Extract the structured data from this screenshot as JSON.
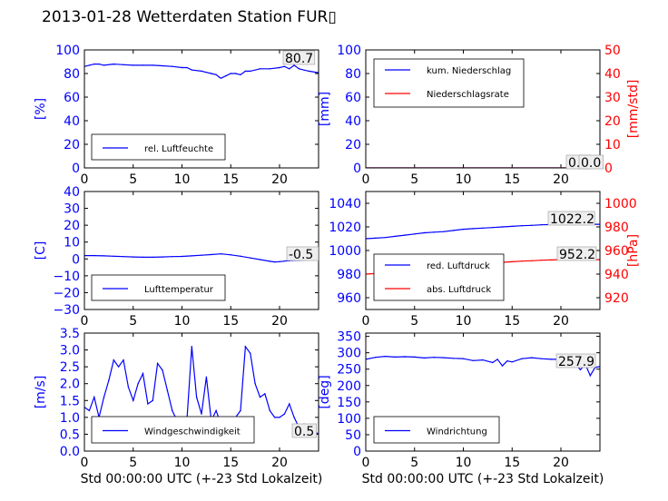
{
  "title": "2013-01-28 Wetterdaten Station FUR▯",
  "xlabel": "Std 00:00:00 UTC (+-23 Std Lokalzeit)",
  "colors": {
    "primary": "#0000ff",
    "secondary": "#ff0000",
    "blue_light": "#8888ff"
  },
  "chart_data": [
    {
      "type": "line",
      "ylabel": "[%]",
      "xlim": [
        0,
        24
      ],
      "ylim": [
        0,
        100
      ],
      "xticks": [
        "0",
        "5",
        "10",
        "15",
        "20"
      ],
      "yticks": [
        "0",
        "20",
        "40",
        "60",
        "80",
        "100"
      ],
      "legend": [
        "rel. Luftfeuchte"
      ],
      "legend_position": "lower-left",
      "annotation": "80.7",
      "series": [
        {
          "name": "rel. Luftfeuchte",
          "x": [
            0,
            0.5,
            1,
            1.5,
            2,
            3,
            4,
            5,
            6,
            7,
            8,
            9,
            10,
            10.5,
            11,
            12,
            12.5,
            13,
            13.5,
            13.8,
            14,
            14.5,
            15,
            15.5,
            16,
            16.5,
            17,
            18,
            19,
            20,
            20.5,
            21,
            21.5,
            22,
            23,
            24
          ],
          "y": [
            86,
            87,
            88,
            88,
            87,
            88,
            87.5,
            87,
            87,
            87,
            86.5,
            86,
            85,
            85,
            83,
            82,
            81,
            80,
            79,
            77,
            76,
            78,
            80,
            80,
            79,
            82,
            82,
            84,
            84,
            85,
            86,
            84,
            87,
            84,
            82,
            80.7
          ]
        }
      ]
    },
    {
      "type": "line",
      "ylabel": "[mm]",
      "ylabel_right": "[mm/std]",
      "xlim": [
        0,
        24
      ],
      "ylim": [
        0,
        100
      ],
      "ylim_right": [
        0,
        50
      ],
      "xticks": [
        "0",
        "5",
        "10",
        "15",
        "20"
      ],
      "yticks": [
        "0",
        "20",
        "40",
        "60",
        "80",
        "100"
      ],
      "yticks_right": [
        "0",
        "10",
        "20",
        "30",
        "40",
        "50"
      ],
      "legend": [
        "kum. Niederschlag",
        "Niederschlagsrate"
      ],
      "legend_position": "upper-left",
      "annotations": [
        "0.0",
        "0.0"
      ],
      "series": [
        {
          "name": "kum. Niederschlag",
          "x": [
            0,
            24
          ],
          "y": [
            0,
            0
          ]
        },
        {
          "name": "Niederschlagsrate",
          "x": [
            0,
            24
          ],
          "y": [
            0,
            0
          ]
        }
      ]
    },
    {
      "type": "line",
      "ylabel": "[C]",
      "xlim": [
        0,
        24
      ],
      "ylim": [
        -30,
        40
      ],
      "xticks": [
        "0",
        "5",
        "10",
        "15",
        "20"
      ],
      "yticks": [
        "−30",
        "−20",
        "−10",
        "0",
        "10",
        "20",
        "30",
        "40"
      ],
      "legend": [
        "Lufttemperatur"
      ],
      "legend_position": "lower-left",
      "annotation": "-0.5",
      "series": [
        {
          "name": "Lufttemperatur",
          "x": [
            0,
            1,
            2,
            3,
            4,
            5,
            6,
            7,
            8,
            9,
            10,
            11,
            12,
            13,
            14,
            15,
            16,
            17,
            18,
            19,
            19.5,
            20,
            21,
            22,
            23,
            24
          ],
          "y": [
            2.0,
            2.0,
            1.8,
            1.6,
            1.4,
            1.2,
            1.0,
            1.0,
            1.2,
            1.4,
            1.5,
            1.8,
            2.2,
            2.6,
            3.0,
            2.4,
            1.6,
            0.6,
            -0.4,
            -1.4,
            -1.8,
            -1.6,
            -1.0,
            -0.8,
            -0.6,
            -0.5
          ]
        }
      ]
    },
    {
      "type": "line",
      "ylabel_right": "[hPa]",
      "xlim": [
        0,
        24
      ],
      "ylim": [
        950,
        1050
      ],
      "ylim_right": [
        910,
        1010
      ],
      "xticks": [
        "0",
        "5",
        "10",
        "15",
        "20"
      ],
      "yticks": [
        "960",
        "980",
        "1000",
        "1020",
        "1040"
      ],
      "yticks_right": [
        "920",
        "940",
        "960",
        "980",
        "1000"
      ],
      "legend": [
        "red. Luftdruck",
        "abs. Luftdruck"
      ],
      "legend_position": "lower-left",
      "annotations": [
        "1022.2",
        "952.2"
      ],
      "series": [
        {
          "name": "red. Luftdruck",
          "x": [
            0,
            1,
            2,
            3,
            4,
            5,
            6,
            7,
            8,
            9,
            10,
            11,
            12,
            13,
            14,
            15,
            16,
            17,
            18,
            19,
            20,
            21,
            22,
            23,
            24
          ],
          "y": [
            1010,
            1010.5,
            1011,
            1012,
            1013,
            1014,
            1015,
            1015.5,
            1016,
            1017,
            1018,
            1018.5,
            1019,
            1019.5,
            1020,
            1020.5,
            1021,
            1021.3,
            1021.8,
            1022,
            1022.2,
            1022.3,
            1022.2,
            1022.2,
            1022.2
          ]
        },
        {
          "name": "abs. Luftdruck",
          "x": [
            0,
            1,
            2,
            3,
            4,
            5,
            6,
            7,
            8,
            9,
            10,
            11,
            12,
            13,
            14,
            15,
            16,
            17,
            18,
            19,
            20,
            21,
            22,
            23,
            24
          ],
          "y": [
            940,
            940.5,
            941,
            942,
            943,
            944,
            945,
            945.5,
            946,
            947,
            948,
            948.5,
            949,
            949.5,
            950,
            950.5,
            951,
            951.3,
            951.8,
            952,
            952.2,
            952.3,
            952.2,
            952.2,
            952.2
          ]
        }
      ]
    },
    {
      "type": "line",
      "ylabel": "[m/s]",
      "xlim": [
        0,
        24
      ],
      "ylim": [
        0,
        3.5
      ],
      "xticks": [
        "0",
        "5",
        "10",
        "15",
        "20"
      ],
      "yticks": [
        "0.0",
        "0.5",
        "1.0",
        "1.5",
        "2.0",
        "2.5",
        "3.0",
        "3.5"
      ],
      "legend": [
        "Windgeschwindigkeit"
      ],
      "legend_position": "lower-left",
      "annotation": "0.5",
      "series": [
        {
          "name": "Windgeschwindigkeit",
          "x": [
            0,
            0.5,
            1,
            1.5,
            2,
            2.5,
            3,
            3.5,
            4,
            4.5,
            5,
            5.5,
            6,
            6.5,
            7,
            7.5,
            8,
            8.5,
            9,
            9.5,
            10,
            10.5,
            11,
            11.5,
            12,
            12.5,
            13,
            13.5,
            14,
            14.5,
            15,
            15.5,
            16,
            16.5,
            17,
            17.5,
            18,
            18.5,
            19,
            19.5,
            20,
            20.5,
            21,
            21.5,
            22,
            22.5,
            23,
            23.5,
            24
          ],
          "y": [
            1.3,
            1.2,
            1.6,
            1.0,
            1.6,
            2.1,
            2.7,
            2.5,
            2.7,
            1.9,
            1.5,
            2.0,
            2.3,
            1.4,
            1.5,
            2.6,
            2.4,
            1.8,
            1.2,
            0.9,
            0.8,
            0.9,
            3.1,
            1.6,
            1.1,
            2.2,
            0.9,
            1.2,
            0.8,
            0.9,
            1.0,
            1.0,
            1.2,
            3.1,
            2.9,
            2.0,
            1.6,
            1.7,
            1.2,
            1.0,
            1.0,
            1.1,
            1.4,
            1.0,
            0.7,
            0.8,
            0.5,
            0.6,
            0.5
          ]
        }
      ]
    },
    {
      "type": "line",
      "ylabel": "[deg]",
      "xlim": [
        0,
        24
      ],
      "ylim": [
        0,
        360
      ],
      "xticks": [
        "0",
        "5",
        "10",
        "15",
        "20"
      ],
      "yticks": [
        "0",
        "50",
        "100",
        "150",
        "200",
        "250",
        "300",
        "350"
      ],
      "legend": [
        "Windrichtung"
      ],
      "legend_position": "lower-left",
      "annotation": "257.9",
      "series": [
        {
          "name": "Windrichtung",
          "x": [
            0,
            1,
            2,
            3,
            4,
            5,
            6,
            7,
            8,
            9,
            10,
            11,
            12,
            13,
            13.5,
            14,
            14.5,
            15,
            16,
            17,
            18,
            19,
            20,
            21,
            21.5,
            22,
            22.5,
            23,
            23.5,
            24
          ],
          "y": [
            280,
            286,
            289,
            287,
            288,
            287,
            284,
            286,
            285,
            283,
            282,
            276,
            278,
            270,
            280,
            260,
            275,
            272,
            282,
            285,
            282,
            280,
            280,
            276,
            265,
            248,
            265,
            230,
            255,
            257.9
          ]
        }
      ]
    }
  ]
}
